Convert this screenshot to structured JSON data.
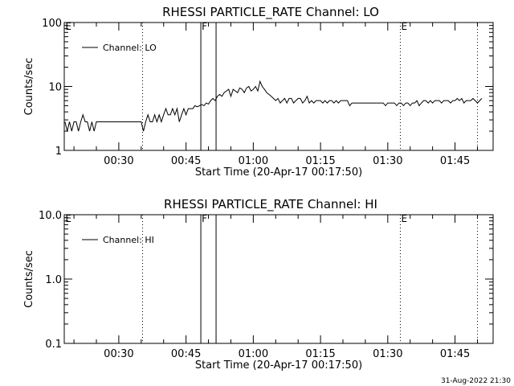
{
  "chart_data": [
    {
      "type": "line",
      "title": "RHESSI PARTICLE_RATE Channel: LO",
      "xlabel": "Start Time (20-Apr-17 00:17:50)",
      "ylabel": "Counts/sec",
      "y_scale": "log",
      "ylim": [
        1,
        100
      ],
      "y_ticks": [
        "1",
        "10",
        "100"
      ],
      "x_range_min": [
        17.833,
        113.5
      ],
      "x_ticks": [
        "00:30",
        "00:45",
        "01:00",
        "01:15",
        "01:30",
        "01:45"
      ],
      "x_tick_min": [
        30,
        45,
        60,
        75,
        90,
        105
      ],
      "legend": "top-left",
      "series": [
        {
          "name": "Channel: LO",
          "x_min": [
            18,
            18.5,
            19,
            19.5,
            20,
            20.5,
            21,
            21.5,
            22,
            22.5,
            23,
            23.5,
            24,
            24.5,
            25,
            25.5,
            26,
            26.5,
            27,
            27.5,
            28,
            28.5,
            29,
            29.5,
            30,
            30.5,
            31,
            31.5,
            32,
            32.5,
            33,
            33.5,
            34,
            34.5,
            35,
            35.5,
            36,
            36.5,
            37,
            37.5,
            38,
            38.5,
            39,
            39.5,
            40,
            40.5,
            41,
            41.5,
            42,
            42.5,
            43,
            43.5,
            44,
            44.5,
            45,
            45.5,
            46,
            46.5,
            47,
            47.5,
            48,
            48.5,
            49,
            49.5,
            50,
            50.5,
            51,
            51.5,
            52,
            52.5,
            53,
            53.5,
            54,
            54.5,
            55,
            55.5,
            56,
            56.5,
            57,
            57.5,
            58,
            58.5,
            59,
            59.5,
            60,
            60.5,
            61,
            61.5,
            62,
            62.5,
            63,
            63.5,
            64,
            64.5,
            65,
            65.5,
            66,
            66.5,
            67,
            67.5,
            68,
            68.5,
            69,
            69.5,
            70,
            70.5,
            71,
            71.5,
            72,
            72.5,
            73,
            73.5,
            74,
            74.5,
            75,
            75.5,
            76,
            76.5,
            77,
            77.5,
            78,
            78.5,
            79,
            79.5,
            80,
            80.5,
            81,
            81.5,
            82,
            82.5,
            83,
            83.5,
            84,
            84.5,
            85,
            85.5,
            86,
            86.5,
            87,
            87.5,
            88,
            88.5,
            89,
            89.5,
            90,
            90.5,
            91,
            91.5,
            92,
            92.5,
            93,
            93.5,
            94,
            94.5,
            95,
            95.5,
            96,
            96.5,
            97,
            97.5,
            98,
            98.5,
            99,
            99.5,
            100,
            100.5,
            101,
            101.5,
            102,
            102.5,
            103,
            103.5,
            104,
            104.5,
            105,
            105.5,
            106,
            106.5,
            107,
            107.5,
            108,
            108.5,
            109,
            109.5,
            110,
            110.5,
            111
          ],
          "values": [
            2.8,
            2.0,
            2.8,
            2.0,
            2.8,
            2.8,
            2.0,
            2.8,
            3.6,
            2.8,
            2.8,
            2.0,
            2.8,
            2.0,
            2.8,
            2.8,
            2.8,
            2.8,
            2.8,
            2.8,
            2.8,
            2.8,
            2.8,
            2.8,
            2.8,
            2.8,
            2.8,
            2.8,
            2.8,
            2.8,
            2.8,
            2.8,
            2.8,
            2.8,
            2.8,
            2.0,
            2.8,
            3.6,
            2.8,
            2.8,
            3.6,
            2.8,
            3.6,
            2.8,
            3.6,
            4.5,
            3.6,
            3.6,
            4.5,
            3.6,
            4.5,
            2.8,
            3.6,
            4.5,
            3.6,
            4.5,
            4.5,
            4.5,
            5.0,
            4.8,
            5.0,
            5.2,
            5.0,
            5.5,
            5.3,
            6.0,
            6.5,
            6.0,
            7.0,
            7.5,
            7.0,
            8.0,
            8.5,
            9.0,
            7.0,
            9.0,
            8.5,
            8.0,
            9.5,
            9.0,
            8.0,
            9.5,
            10.0,
            8.5,
            9.0,
            10.0,
            8.5,
            12.0,
            10.0,
            9.0,
            8.0,
            7.5,
            7.0,
            6.5,
            6.0,
            6.5,
            5.5,
            6.0,
            6.5,
            5.5,
            6.5,
            6.5,
            5.5,
            6.0,
            6.5,
            6.5,
            5.5,
            6.0,
            7.0,
            5.5,
            6.0,
            5.5,
            6.0,
            6.0,
            6.0,
            5.5,
            6.0,
            5.5,
            6.0,
            6.0,
            5.5,
            6.0,
            5.5,
            6.0,
            6.0,
            6.0,
            6.0,
            5.0,
            5.5,
            5.5,
            5.5,
            5.5,
            5.5,
            5.5,
            5.5,
            5.5,
            5.5,
            5.5,
            5.5,
            5.5,
            5.5,
            5.5,
            5.5,
            5.0,
            5.5,
            5.5,
            5.5,
            5.5,
            5.0,
            5.5,
            5.5,
            5.0,
            5.5,
            5.5,
            5.0,
            5.5,
            5.5,
            6.0,
            5.0,
            5.5,
            6.0,
            6.0,
            5.5,
            6.0,
            5.5,
            6.0,
            6.0,
            6.0,
            5.5,
            6.0,
            6.0,
            6.0,
            5.5,
            6.0,
            6.0,
            6.5,
            6.0,
            6.5,
            5.5,
            6.0,
            6.0,
            6.0,
            6.5,
            6.0,
            5.5,
            6.0,
            6.5,
            6.0,
            6.5,
            5.5
          ]
        }
      ],
      "markers": [
        {
          "label": "E",
          "x_min": 17.9,
          "style": "none"
        },
        {
          "label": "",
          "x_min": 35.3,
          "style": "dotted"
        },
        {
          "label": "F",
          "x_min": 48.3,
          "style": "solid"
        },
        {
          "label": "",
          "x_min": 51.7,
          "style": "solid"
        },
        {
          "label": "E",
          "x_min": 92.8,
          "style": "dotted"
        },
        {
          "label": "",
          "x_min": 110.0,
          "style": "dotted"
        }
      ]
    },
    {
      "type": "line",
      "title": "RHESSI PARTICLE_RATE Channel: HI",
      "xlabel": "Start Time (20-Apr-17 00:17:50)",
      "ylabel": "Counts/sec",
      "y_scale": "log",
      "ylim": [
        0.1,
        10.0
      ],
      "y_ticks": [
        "0.1",
        "1.0",
        "10.0"
      ],
      "x_range_min": [
        17.833,
        113.5
      ],
      "x_ticks": [
        "00:30",
        "00:45",
        "01:00",
        "01:15",
        "01:30",
        "01:45"
      ],
      "x_tick_min": [
        30,
        45,
        60,
        75,
        90,
        105
      ],
      "legend": "top-left",
      "series": [
        {
          "name": "Channel: HI",
          "x_min": [],
          "values": []
        }
      ],
      "markers": [
        {
          "label": "E",
          "x_min": 17.9,
          "style": "none"
        },
        {
          "label": "",
          "x_min": 35.3,
          "style": "dotted"
        },
        {
          "label": "F",
          "x_min": 48.3,
          "style": "solid"
        },
        {
          "label": "",
          "x_min": 51.7,
          "style": "solid"
        },
        {
          "label": "E",
          "x_min": 92.8,
          "style": "dotted"
        },
        {
          "label": "",
          "x_min": 110.0,
          "style": "dotted"
        }
      ]
    }
  ],
  "footer": {
    "timestamp": "31-Aug-2022 21:30"
  }
}
